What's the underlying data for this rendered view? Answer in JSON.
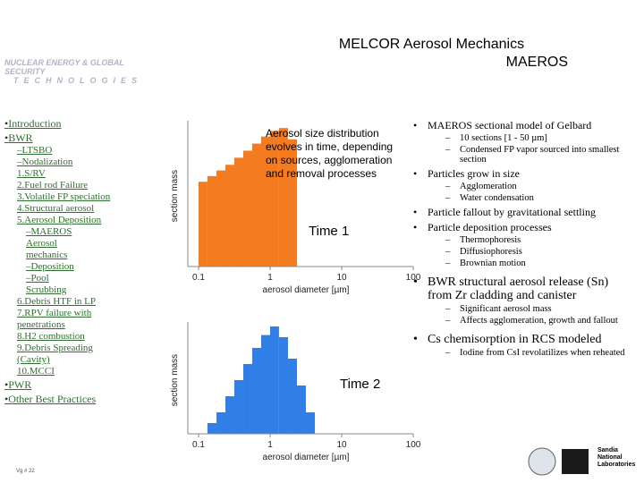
{
  "header": {
    "title": "MELCOR Aerosol Mechanics",
    "subtitle": "MAEROS",
    "logo_text": "NUCLEAR ENERGY & GLOBAL SECURITY",
    "logo_subtext": "TECHNOLOGIES"
  },
  "nav": [
    {
      "label": "Introduction"
    },
    {
      "label": "BWR",
      "items": [
        {
          "label": "–LTSBO"
        },
        {
          "label": "–Nodalization"
        },
        {
          "label": "1.S/RV"
        },
        {
          "label": "2.Fuel rod Failure"
        },
        {
          "label": "3.Volatile FP speciation"
        },
        {
          "label": "4.Structural aerosol"
        },
        {
          "label": "5.Aerosol Deposition",
          "items": [
            {
              "label": "–MAEROS Aerosol mechanics"
            },
            {
              "label": "–Deposition"
            },
            {
              "label": "–Pool Scrubbing"
            }
          ]
        },
        {
          "label": "6.Debris HTF in LP"
        },
        {
          "label": "7.RPV failure with penetrations"
        },
        {
          "label": "8.H2 combustion"
        },
        {
          "label": "9.Debris Spreading (Cavity)"
        },
        {
          "label": "10.MCCI"
        }
      ]
    },
    {
      "label": "PWR"
    },
    {
      "label": "Other Best Practices"
    }
  ],
  "bullets": [
    {
      "text": "MAEROS sectional model of Gelbard",
      "sub": [
        "10 sections [1 - 50 µm]",
        "Condensed FP vapor sourced into smallest section"
      ]
    },
    {
      "text": "Particles grow in size",
      "sub": [
        "Agglomeration",
        "Water condensation"
      ]
    },
    {
      "text": "Particle fallout by gravitational settling",
      "sub": []
    },
    {
      "text": "Particle deposition processes",
      "sub": [
        "Thermophoresis",
        "Diffusiophoresis",
        "Brownian motion"
      ]
    },
    {
      "text": "BWR structural aerosol release (Sn) from Zr cladding and canister",
      "sub": [
        "Significant aerosol mass",
        "Affects agglomeration, growth and fallout"
      ]
    },
    {
      "text": "Cs chemisorption in RCS modeled",
      "sub": [
        "Iodine from CsI revolatilizes when reheated"
      ]
    }
  ],
  "footer": {
    "page": "Vg # 22",
    "org": "Sandia National Laboratories"
  },
  "chart_data": [
    {
      "type": "histogram",
      "xlabel": "aerosol diameter [µm]",
      "ylabel": "section mass",
      "color": "#f47b20",
      "annotations": [
        "Aerosol size distribution evolves in time, depending on sources, agglomeration and removal processes",
        "Time 1"
      ],
      "bins": [
        0.1,
        0.133,
        0.178,
        0.237,
        0.316,
        0.422,
        0.562,
        0.75,
        1,
        1.33,
        1.78,
        2.37
      ],
      "values": [
        0.6,
        0.64,
        0.68,
        0.72,
        0.77,
        0.82,
        0.87,
        0.92,
        0.96,
        0.98,
        0.9
      ],
      "xscale": "log",
      "xlim": [
        0.1,
        100
      ],
      "xticks": [
        0.1,
        1,
        10,
        100
      ],
      "ylim": [
        0,
        1
      ]
    },
    {
      "type": "histogram",
      "xlabel": "aerosol diameter [µm]",
      "ylabel": "section mass",
      "color": "#2f7fe6",
      "annotations": [
        "Time 2"
      ],
      "bins": [
        0.133,
        0.178,
        0.237,
        0.316,
        0.422,
        0.562,
        0.75,
        1,
        1.33,
        1.78,
        2.37,
        3.16,
        4.22
      ],
      "values": [
        0.1,
        0.2,
        0.35,
        0.5,
        0.65,
        0.8,
        0.92,
        1.0,
        0.9,
        0.7,
        0.45,
        0.2
      ],
      "xscale": "log",
      "xlim": [
        0.1,
        100
      ],
      "xticks": [
        0.1,
        1,
        10,
        100
      ],
      "ylim": [
        0,
        1
      ]
    }
  ]
}
